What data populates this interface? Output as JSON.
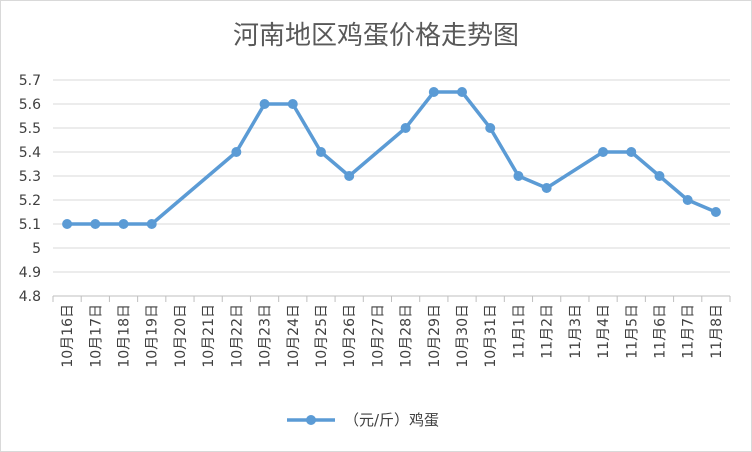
{
  "chart_data": {
    "type": "line",
    "title": "河南地区鸡蛋价格走势图",
    "xlabel": "",
    "ylabel": "",
    "categories": [
      "10月16日",
      "10月17日",
      "10月18日",
      "10月19日",
      "10月20日",
      "10月21日",
      "10月22日",
      "10月23日",
      "10月24日",
      "10月25日",
      "10月26日",
      "10月27日",
      "10月28日",
      "10月29日",
      "10月30日",
      "10月31日",
      "11月1日",
      "11月2日",
      "11月3日",
      "11月4日",
      "11月5日",
      "11月6日",
      "11月7日",
      "11月8日"
    ],
    "series": [
      {
        "name": "（元/斤）鸡蛋",
        "color": "#5B9BD5",
        "values": [
          5.1,
          5.1,
          5.1,
          5.1,
          null,
          null,
          5.4,
          5.6,
          5.6,
          5.4,
          5.3,
          null,
          5.5,
          5.65,
          5.65,
          5.5,
          5.3,
          5.25,
          null,
          5.4,
          5.4,
          5.3,
          5.2,
          5.15
        ]
      }
    ],
    "ylim": [
      4.8,
      5.7
    ],
    "yticks": [
      "4.8",
      "4.9",
      "5",
      "5.1",
      "5.2",
      "5.3",
      "5.4",
      "5.5",
      "5.6",
      "5.7"
    ],
    "grid": true,
    "gap_mode": "connect",
    "legend_position": "bottom",
    "colors": {
      "gridline": "#d9d9d9",
      "axis": "#bfbfbf",
      "text": "#404040"
    }
  }
}
